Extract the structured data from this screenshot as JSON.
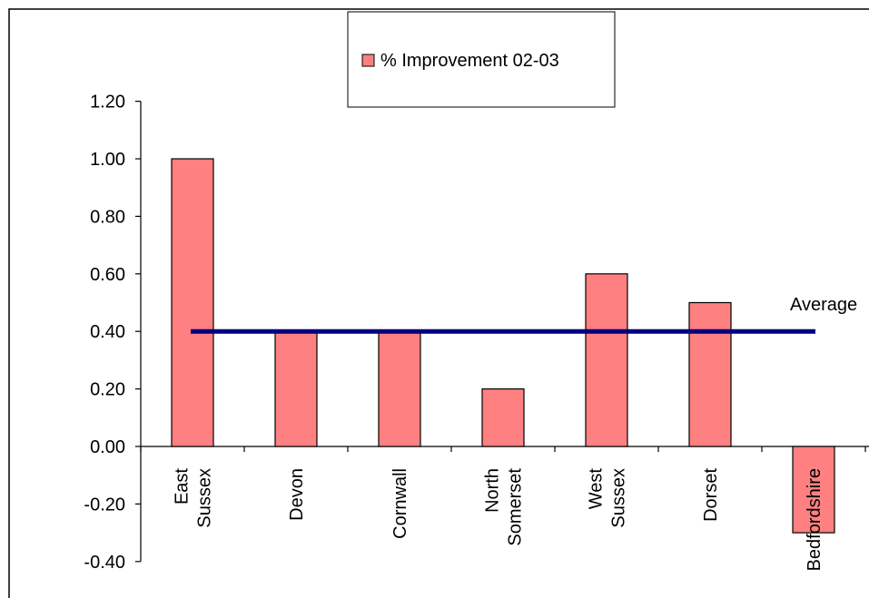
{
  "chart_data": {
    "type": "bar",
    "categories": [
      [
        "East",
        "Sussex"
      ],
      [
        "Devon"
      ],
      [
        "Cornwall"
      ],
      [
        "North",
        "Somerset"
      ],
      [
        "West",
        "Sussex"
      ],
      [
        "Dorset"
      ],
      [
        "Bedfordshire"
      ]
    ],
    "series": [
      {
        "name": "% Improvement 02-03",
        "values": [
          1.0,
          0.4,
          0.4,
          0.2,
          0.6,
          0.5,
          -0.3
        ],
        "color": "#FF8080"
      }
    ],
    "reference_line": {
      "label": "Average",
      "value": 0.4,
      "color": "#000080"
    },
    "ylim": [
      -0.4,
      1.2
    ],
    "yticks": [
      "1.20",
      "1.00",
      "0.80",
      "0.60",
      "0.40",
      "0.20",
      "0.00",
      "-0.20",
      "-0.40"
    ],
    "ytick_values": [
      1.2,
      1.0,
      0.8,
      0.6,
      0.4,
      0.2,
      0.0,
      -0.2,
      -0.4
    ],
    "title": "",
    "xlabel": "",
    "ylabel": "",
    "grid": false,
    "legend_position": "top-center"
  }
}
